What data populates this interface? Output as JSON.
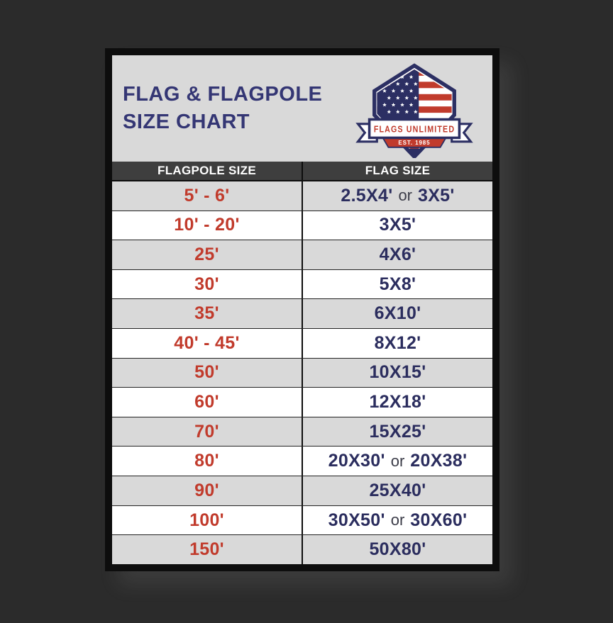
{
  "header": {
    "title_line1": "FLAG & FLAGPOLE",
    "title_line2": "SIZE CHART"
  },
  "logo": {
    "name": "FLAGS UNLIMITED",
    "established": "EST. 1985"
  },
  "table": {
    "columns": [
      "FLAGPOLE SIZE",
      "FLAG SIZE"
    ],
    "or_word": "or",
    "rows": [
      {
        "flagpole": "5' - 6'",
        "flag": "2.5X4'",
        "flag_alt": "3X5'"
      },
      {
        "flagpole": "10' - 20'",
        "flag": "3X5'"
      },
      {
        "flagpole": "25'",
        "flag": "4X6'"
      },
      {
        "flagpole": "30'",
        "flag": "5X8'"
      },
      {
        "flagpole": "35'",
        "flag": "6X10'"
      },
      {
        "flagpole": "40' - 45'",
        "flag": "8X12'"
      },
      {
        "flagpole": "50'",
        "flag": "10X15'"
      },
      {
        "flagpole": "60'",
        "flag": "12X18'"
      },
      {
        "flagpole": "70'",
        "flag": "15X25'"
      },
      {
        "flagpole": "80'",
        "flag": "20X30'",
        "flag_alt": "20X38'"
      },
      {
        "flagpole": "90'",
        "flag": "25X40'"
      },
      {
        "flagpole": "100'",
        "flag": "30X50'",
        "flag_alt": "30X60'"
      },
      {
        "flagpole": "150'",
        "flag": "50X80'"
      }
    ]
  },
  "colors": {
    "page_background": "#2b2b2b",
    "frame": "#0d0d0d",
    "header_background": "#d9d9d9",
    "table_header_background": "#3e3e3e",
    "row_gray": "#d9d9d9",
    "row_white": "#ffffff",
    "flagpole_text": "#c13b2c",
    "flag_text": "#2b2d5e",
    "title_text": "#343674"
  },
  "chart_data": {
    "type": "table",
    "title": "FLAG & FLAGPOLE SIZE CHART",
    "columns": [
      "FLAGPOLE SIZE",
      "FLAG SIZE"
    ],
    "rows": [
      [
        "5' - 6'",
        "2.5X4' or 3X5'"
      ],
      [
        "10' - 20'",
        "3X5'"
      ],
      [
        "25'",
        "4X6'"
      ],
      [
        "30'",
        "5X8'"
      ],
      [
        "35'",
        "6X10'"
      ],
      [
        "40' - 45'",
        "8X12'"
      ],
      [
        "50'",
        "10X15'"
      ],
      [
        "60'",
        "12X18'"
      ],
      [
        "70'",
        "15X25'"
      ],
      [
        "80'",
        "20X30' or 20X38'"
      ],
      [
        "90'",
        "25X40'"
      ],
      [
        "100'",
        "30X50' or 30X60'"
      ],
      [
        "150'",
        "50X80'"
      ]
    ]
  }
}
